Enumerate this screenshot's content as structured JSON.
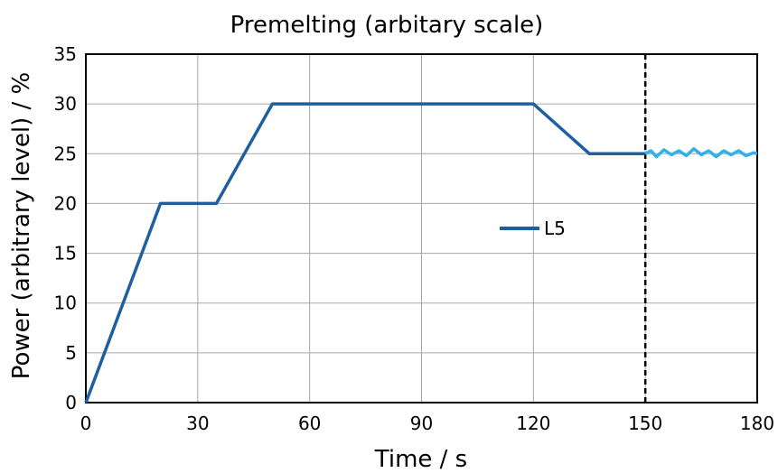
{
  "chart_data": {
    "type": "line",
    "title": "Premelting (arbitary scale)",
    "xlabel": "Time / s",
    "ylabel": "Power (arbitrary level) / %",
    "xlim": [
      0,
      180
    ],
    "ylim": [
      0,
      35
    ],
    "xticks": [
      0,
      30,
      60,
      90,
      120,
      150,
      180
    ],
    "yticks": [
      0,
      5,
      10,
      15,
      20,
      25,
      30,
      35
    ],
    "grid": true,
    "legend": {
      "position": "center-right"
    },
    "series": [
      {
        "name": "L5",
        "color": "#1F5FA0",
        "x": [
          0,
          20,
          35,
          50,
          120,
          135,
          150
        ],
        "y": [
          0,
          20,
          20,
          30,
          30,
          25,
          25
        ]
      },
      {
        "name": "",
        "color": "#33B0E8",
        "x": [
          150,
          151.5,
          153,
          155,
          157,
          159,
          161,
          163,
          165,
          167,
          169,
          171,
          173,
          175,
          177,
          179,
          180
        ],
        "y": [
          25,
          25.3,
          24.7,
          25.4,
          24.9,
          25.3,
          24.8,
          25.5,
          24.9,
          25.3,
          24.7,
          25.3,
          24.9,
          25.3,
          24.8,
          25.1,
          25
        ]
      }
    ],
    "annotations": [
      {
        "type": "vertical-dashed-line",
        "x": 150,
        "color": "#000000"
      }
    ]
  }
}
